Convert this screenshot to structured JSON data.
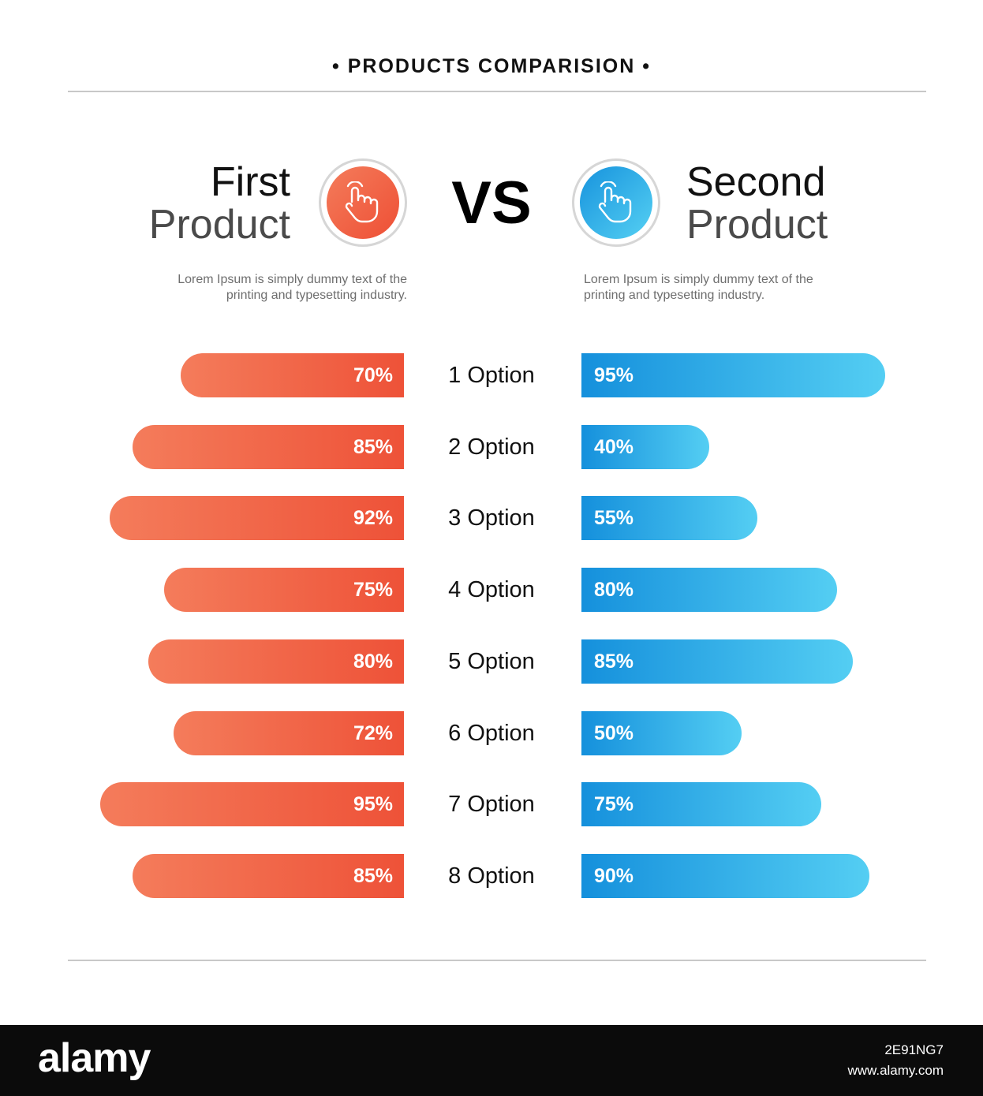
{
  "title": "• PRODUCTS COMPARISION •",
  "vs_label": "VS",
  "first_product": {
    "line1": "First",
    "line2": "Product",
    "description": "Lorem Ipsum is simply dummy text of the printing and typesetting industry.",
    "icon": "hand-pointer-icon",
    "color": "#ee5238"
  },
  "second_product": {
    "line1": "Second",
    "line2": "Product",
    "description": "Lorem Ipsum is simply dummy text of the printing and typesetting industry.",
    "icon": "hand-pointer-icon",
    "color": "#1590dc"
  },
  "chart_data": {
    "type": "bar",
    "categories": [
      "1 Option",
      "2 Option",
      "3 Option",
      "4 Option",
      "5 Option",
      "6 Option",
      "7 Option",
      "8 Option"
    ],
    "series": [
      {
        "name": "First Product",
        "values": [
          70,
          85,
          92,
          75,
          80,
          72,
          95,
          85
        ],
        "color": "#ee5238"
      },
      {
        "name": "Second Product",
        "values": [
          95,
          40,
          55,
          80,
          85,
          50,
          75,
          90
        ],
        "color": "#1590dc"
      }
    ],
    "unit": "%",
    "xlim": [
      0,
      100
    ]
  },
  "footer": {
    "logo": "alamy",
    "image_id": "2E91NG7",
    "url": "www.alamy.com"
  }
}
